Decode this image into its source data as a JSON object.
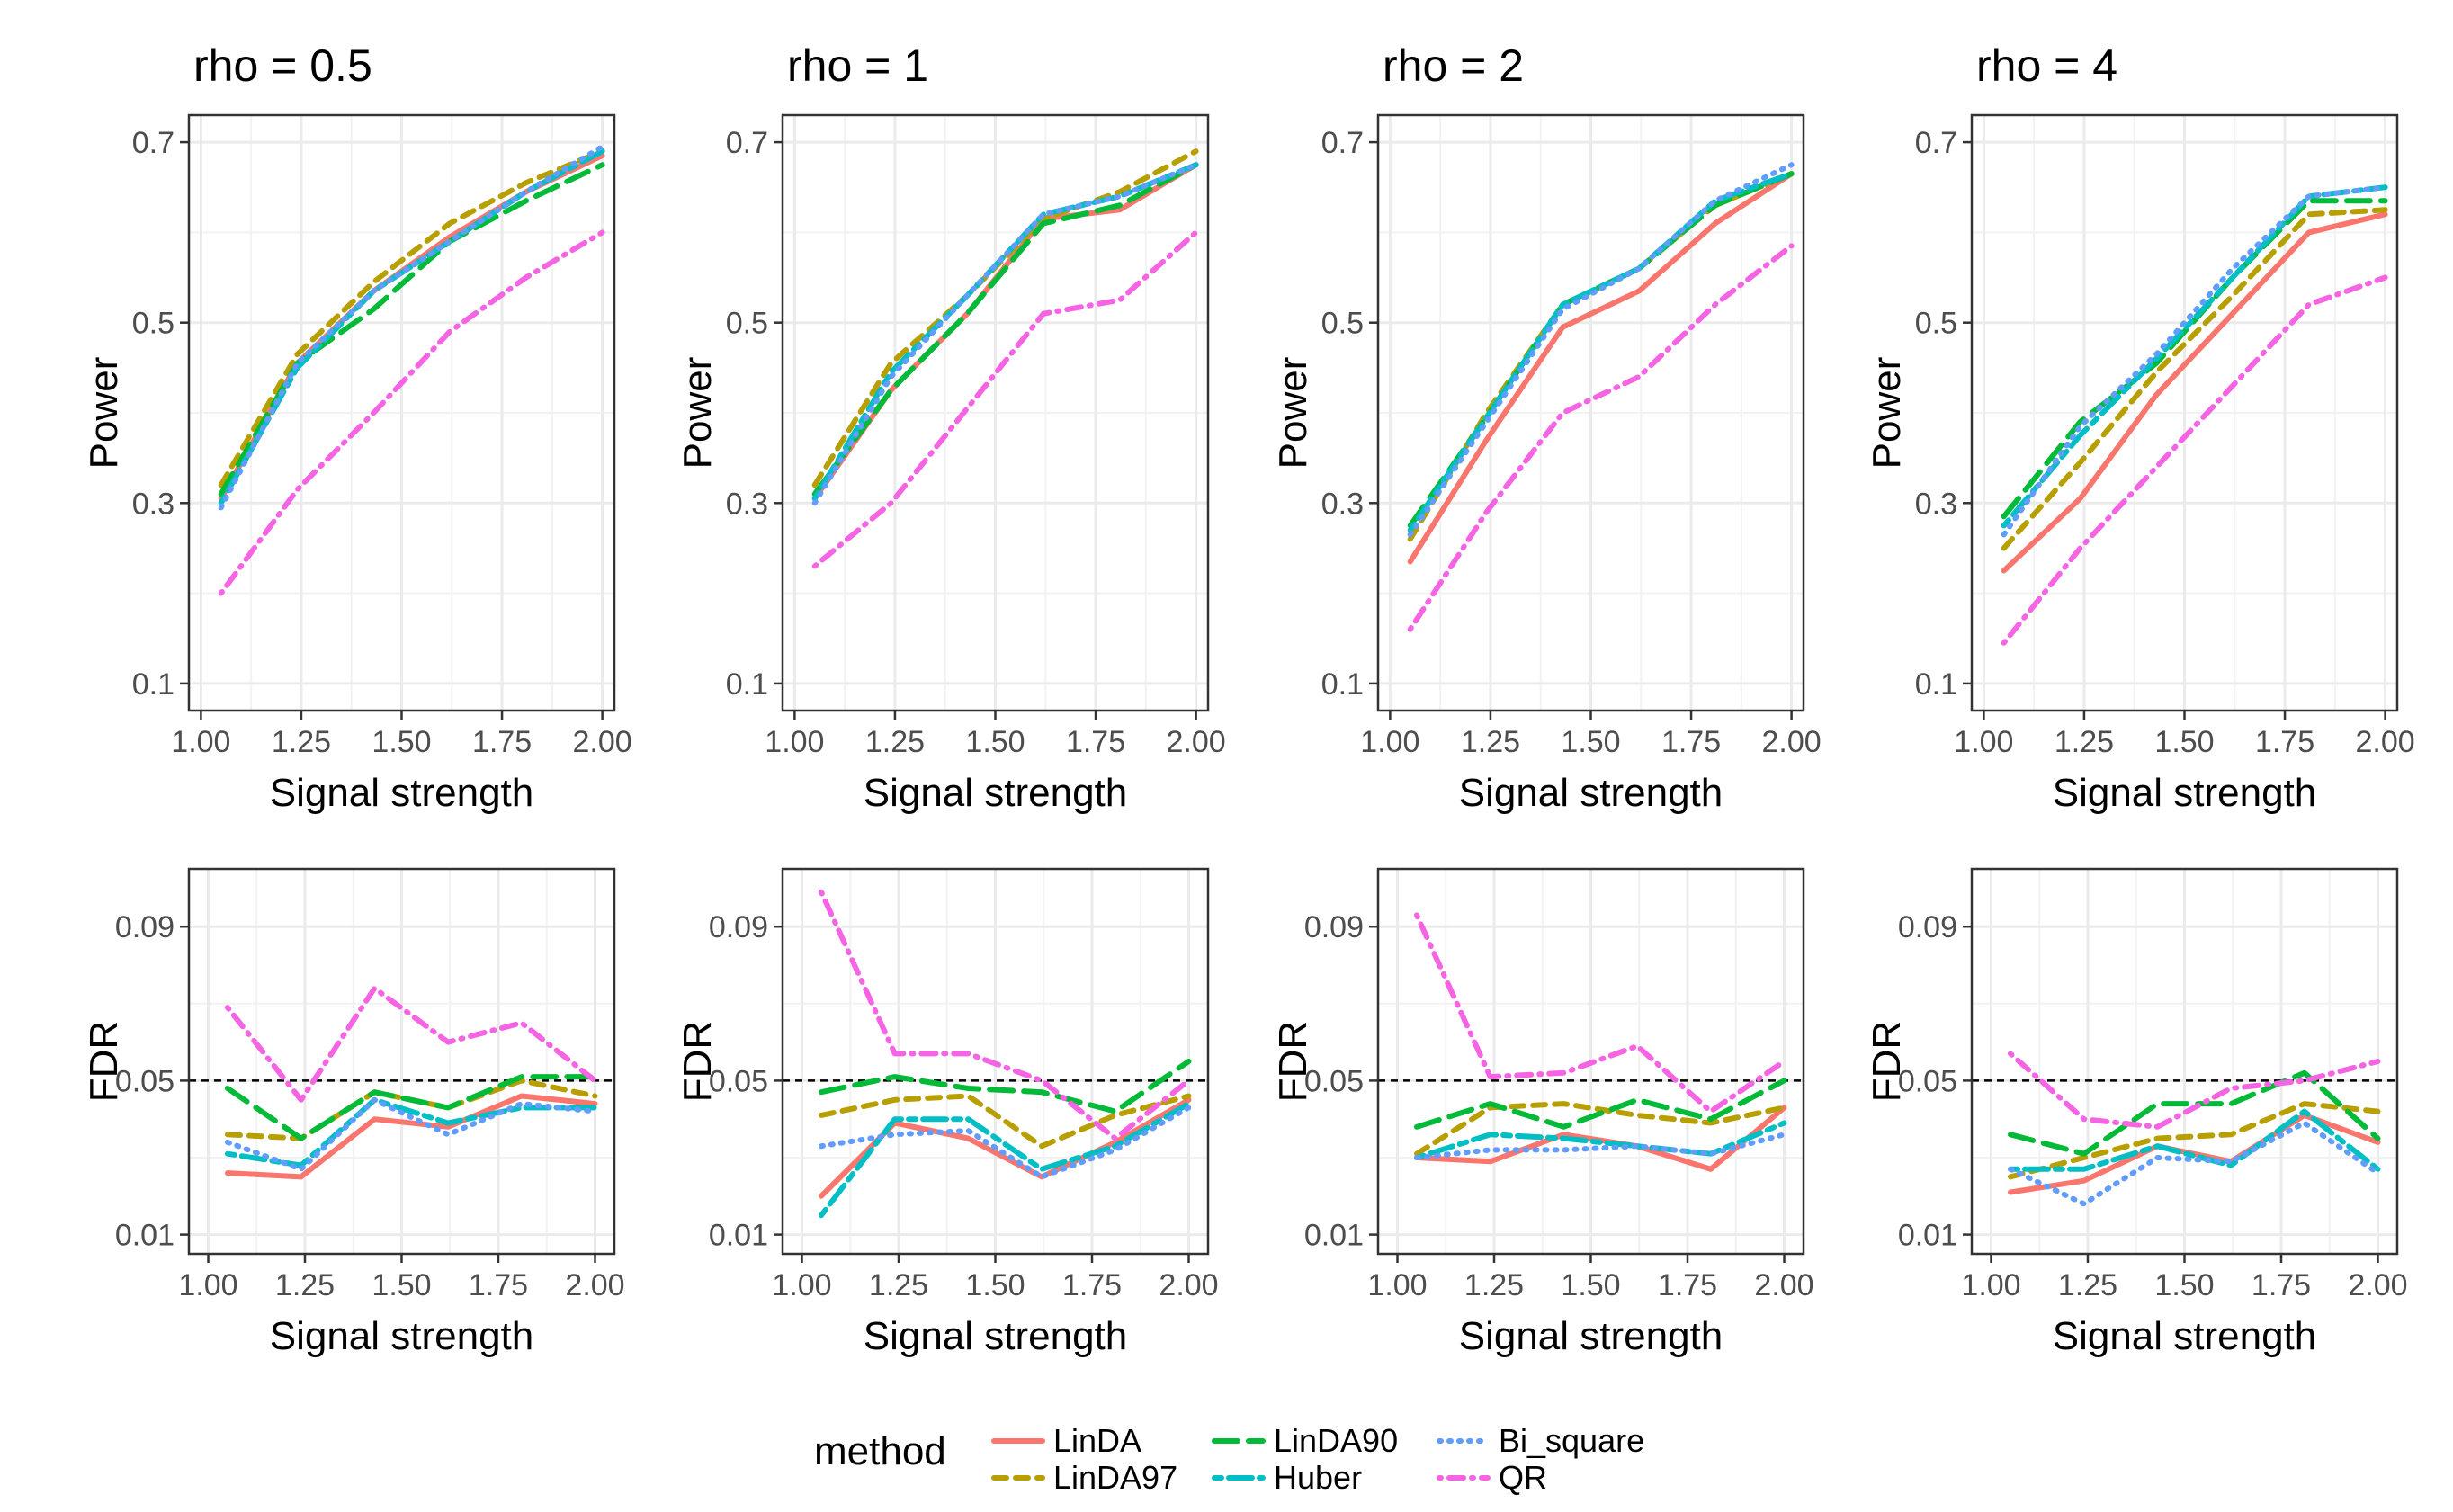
{
  "chart_data": [
    {
      "type": "line",
      "title": "rho = 0.5",
      "xlabel": "Signal strength",
      "ylabel": "Power",
      "xlim": [
        0.97,
        2.03
      ],
      "ylim": [
        0.07,
        0.73
      ],
      "xticks": [
        1.0,
        1.25,
        1.5,
        1.75,
        2.0
      ],
      "xtick_labels": [
        "1.00",
        "1.25",
        "1.50",
        "1.75",
        "2.00"
      ],
      "yticks": [
        0.1,
        0.3,
        0.5,
        0.7
      ],
      "ytick_labels": [
        "0.1",
        "0.3",
        "0.5",
        "0.7"
      ],
      "x": [
        1.05,
        1.24,
        1.43,
        1.62,
        1.81,
        2.0
      ],
      "series": [
        {
          "name": "LinDA",
          "values": [
            0.305,
            0.455,
            0.535,
            0.595,
            0.645,
            0.685
          ]
        },
        {
          "name": "LinDA97",
          "values": [
            0.32,
            0.465,
            0.545,
            0.61,
            0.655,
            0.69
          ]
        },
        {
          "name": "LinDA90",
          "values": [
            0.31,
            0.455,
            0.515,
            0.59,
            0.635,
            0.675
          ]
        },
        {
          "name": "Huber",
          "values": [
            0.3,
            0.45,
            0.535,
            0.59,
            0.645,
            0.69
          ]
        },
        {
          "name": "Bi_square",
          "values": [
            0.295,
            0.455,
            0.535,
            0.59,
            0.645,
            0.695
          ]
        },
        {
          "name": "QR",
          "values": [
            0.2,
            0.315,
            0.4,
            0.49,
            0.55,
            0.6
          ]
        }
      ]
    },
    {
      "type": "line",
      "title": "rho = 1",
      "xlabel": "Signal strength",
      "ylabel": "Power",
      "xlim": [
        0.97,
        2.03
      ],
      "ylim": [
        0.07,
        0.73
      ],
      "xticks": [
        1.0,
        1.25,
        1.5,
        1.75,
        2.0
      ],
      "xtick_labels": [
        "1.00",
        "1.25",
        "1.50",
        "1.75",
        "2.00"
      ],
      "yticks": [
        0.1,
        0.3,
        0.5,
        0.7
      ],
      "ytick_labels": [
        "0.1",
        "0.3",
        "0.5",
        "0.7"
      ],
      "x": [
        1.05,
        1.24,
        1.43,
        1.62,
        1.81,
        2.0
      ],
      "series": [
        {
          "name": "LinDA",
          "values": [
            0.305,
            0.425,
            0.51,
            0.615,
            0.625,
            0.675
          ]
        },
        {
          "name": "LinDA97",
          "values": [
            0.32,
            0.455,
            0.53,
            0.615,
            0.645,
            0.69
          ]
        },
        {
          "name": "LinDA90",
          "values": [
            0.31,
            0.425,
            0.51,
            0.61,
            0.63,
            0.675
          ]
        },
        {
          "name": "Huber",
          "values": [
            0.305,
            0.445,
            0.53,
            0.62,
            0.64,
            0.675
          ]
        },
        {
          "name": "Bi_square",
          "values": [
            0.3,
            0.44,
            0.53,
            0.62,
            0.64,
            0.675
          ]
        },
        {
          "name": "QR",
          "values": [
            0.23,
            0.3,
            0.405,
            0.51,
            0.525,
            0.6
          ]
        }
      ]
    },
    {
      "type": "line",
      "title": "rho = 2",
      "xlabel": "Signal strength",
      "ylabel": "Power",
      "xlim": [
        0.97,
        2.03
      ],
      "ylim": [
        0.07,
        0.73
      ],
      "xticks": [
        1.0,
        1.25,
        1.5,
        1.75,
        2.0
      ],
      "xtick_labels": [
        "1.00",
        "1.25",
        "1.50",
        "1.75",
        "2.00"
      ],
      "yticks": [
        0.1,
        0.3,
        0.5,
        0.7
      ],
      "ytick_labels": [
        "0.1",
        "0.3",
        "0.5",
        "0.7"
      ],
      "x": [
        1.05,
        1.24,
        1.43,
        1.62,
        1.81,
        2.0
      ],
      "series": [
        {
          "name": "LinDA",
          "values": [
            0.235,
            0.37,
            0.495,
            0.535,
            0.61,
            0.665
          ]
        },
        {
          "name": "LinDA97",
          "values": [
            0.26,
            0.4,
            0.52,
            0.56,
            0.63,
            0.665
          ]
        },
        {
          "name": "LinDA90",
          "values": [
            0.275,
            0.395,
            0.52,
            0.56,
            0.63,
            0.665
          ]
        },
        {
          "name": "Huber",
          "values": [
            0.27,
            0.395,
            0.52,
            0.56,
            0.635,
            0.665
          ]
        },
        {
          "name": "Bi_square",
          "values": [
            0.265,
            0.39,
            0.515,
            0.56,
            0.635,
            0.675
          ]
        },
        {
          "name": "QR",
          "values": [
            0.16,
            0.29,
            0.4,
            0.44,
            0.52,
            0.585
          ]
        }
      ]
    },
    {
      "type": "line",
      "title": "rho = 4",
      "xlabel": "Signal strength",
      "ylabel": "Power",
      "xlim": [
        0.97,
        2.03
      ],
      "ylim": [
        0.07,
        0.73
      ],
      "xticks": [
        1.0,
        1.25,
        1.5,
        1.75,
        2.0
      ],
      "xtick_labels": [
        "1.00",
        "1.25",
        "1.50",
        "1.75",
        "2.00"
      ],
      "yticks": [
        0.1,
        0.3,
        0.5,
        0.7
      ],
      "ytick_labels": [
        "0.1",
        "0.3",
        "0.5",
        "0.7"
      ],
      "x": [
        1.05,
        1.24,
        1.43,
        1.62,
        1.81,
        2.0
      ],
      "series": [
        {
          "name": "LinDA",
          "values": [
            0.225,
            0.305,
            0.42,
            0.51,
            0.6,
            0.62
          ]
        },
        {
          "name": "LinDA97",
          "values": [
            0.25,
            0.345,
            0.445,
            0.53,
            0.62,
            0.625
          ]
        },
        {
          "name": "LinDA90",
          "values": [
            0.285,
            0.39,
            0.455,
            0.55,
            0.635,
            0.635
          ]
        },
        {
          "name": "Huber",
          "values": [
            0.275,
            0.375,
            0.46,
            0.55,
            0.64,
            0.65
          ]
        },
        {
          "name": "Bi_square",
          "values": [
            0.265,
            0.385,
            0.465,
            0.56,
            0.64,
            0.65
          ]
        },
        {
          "name": "QR",
          "values": [
            0.145,
            0.25,
            0.34,
            0.43,
            0.52,
            0.55
          ]
        }
      ]
    },
    {
      "type": "line",
      "title": "",
      "xlabel": "Signal strength",
      "ylabel": "FDR",
      "xlim": [
        0.95,
        2.05
      ],
      "ylim": [
        0.005,
        0.105
      ],
      "xticks": [
        1.0,
        1.25,
        1.5,
        1.75,
        2.0
      ],
      "xtick_labels": [
        "1.00",
        "1.25",
        "1.50",
        "1.75",
        "2.00"
      ],
      "yticks": [
        0.01,
        0.05,
        0.09
      ],
      "ytick_labels": [
        "0.01",
        "0.05",
        "0.09"
      ],
      "reference_line": 0.05,
      "x": [
        1.05,
        1.24,
        1.43,
        1.62,
        1.81,
        2.0
      ],
      "series": [
        {
          "name": "LinDA",
          "values": [
            0.026,
            0.025,
            0.04,
            0.038,
            0.046,
            0.044
          ]
        },
        {
          "name": "LinDA97",
          "values": [
            0.036,
            0.035,
            0.047,
            0.043,
            0.05,
            0.046
          ]
        },
        {
          "name": "LinDA90",
          "values": [
            0.048,
            0.035,
            0.047,
            0.043,
            0.051,
            0.051
          ]
        },
        {
          "name": "Huber",
          "values": [
            0.031,
            0.028,
            0.045,
            0.039,
            0.043,
            0.043
          ]
        },
        {
          "name": "Bi_square",
          "values": [
            0.034,
            0.027,
            0.045,
            0.036,
            0.044,
            0.042
          ]
        },
        {
          "name": "QR",
          "values": [
            0.069,
            0.045,
            0.074,
            0.06,
            0.065,
            0.05
          ]
        }
      ]
    },
    {
      "type": "line",
      "title": "",
      "xlabel": "Signal strength",
      "ylabel": "FDR",
      "xlim": [
        0.95,
        2.05
      ],
      "ylim": [
        0.005,
        0.105
      ],
      "xticks": [
        1.0,
        1.25,
        1.5,
        1.75,
        2.0
      ],
      "xtick_labels": [
        "1.00",
        "1.25",
        "1.50",
        "1.75",
        "2.00"
      ],
      "yticks": [
        0.01,
        0.05,
        0.09
      ],
      "ytick_labels": [
        "0.01",
        "0.05",
        "0.09"
      ],
      "reference_line": 0.05,
      "x": [
        1.05,
        1.24,
        1.43,
        1.62,
        1.81,
        2.0
      ],
      "series": [
        {
          "name": "LinDA",
          "values": [
            0.02,
            0.039,
            0.035,
            0.025,
            0.034,
            0.045
          ]
        },
        {
          "name": "LinDA97",
          "values": [
            0.041,
            0.045,
            0.046,
            0.033,
            0.041,
            0.046
          ]
        },
        {
          "name": "LinDA90",
          "values": [
            0.047,
            0.051,
            0.048,
            0.047,
            0.042,
            0.055
          ]
        },
        {
          "name": "Huber",
          "values": [
            0.015,
            0.04,
            0.04,
            0.027,
            0.033,
            0.044
          ]
        },
        {
          "name": "Bi_square",
          "values": [
            0.033,
            0.036,
            0.037,
            0.025,
            0.032,
            0.043
          ]
        },
        {
          "name": "QR",
          "values": [
            0.099,
            0.057,
            0.057,
            0.05,
            0.035,
            0.05
          ]
        }
      ]
    },
    {
      "type": "line",
      "title": "",
      "xlabel": "Signal strength",
      "ylabel": "FDR",
      "xlim": [
        0.95,
        2.05
      ],
      "ylim": [
        0.005,
        0.105
      ],
      "xticks": [
        1.0,
        1.25,
        1.5,
        1.75,
        2.0
      ],
      "xtick_labels": [
        "1.00",
        "1.25",
        "1.50",
        "1.75",
        "2.00"
      ],
      "yticks": [
        0.01,
        0.05,
        0.09
      ],
      "ytick_labels": [
        "0.01",
        "0.05",
        "0.09"
      ],
      "reference_line": 0.05,
      "x": [
        1.05,
        1.24,
        1.43,
        1.62,
        1.81,
        2.0
      ],
      "series": [
        {
          "name": "LinDA",
          "values": [
            0.03,
            0.029,
            0.036,
            0.033,
            0.027,
            0.043
          ]
        },
        {
          "name": "LinDA97",
          "values": [
            0.031,
            0.043,
            0.044,
            0.041,
            0.039,
            0.043
          ]
        },
        {
          "name": "LinDA90",
          "values": [
            0.038,
            0.044,
            0.038,
            0.045,
            0.04,
            0.05
          ]
        },
        {
          "name": "Huber",
          "values": [
            0.03,
            0.036,
            0.035,
            0.033,
            0.031,
            0.039
          ]
        },
        {
          "name": "Bi_square",
          "values": [
            0.03,
            0.032,
            0.032,
            0.033,
            0.031,
            0.036
          ]
        },
        {
          "name": "QR",
          "values": [
            0.093,
            0.051,
            0.052,
            0.059,
            0.042,
            0.055
          ]
        }
      ]
    },
    {
      "type": "line",
      "title": "",
      "xlabel": "Signal strength",
      "ylabel": "FDR",
      "xlim": [
        0.95,
        2.05
      ],
      "ylim": [
        0.005,
        0.105
      ],
      "xticks": [
        1.0,
        1.25,
        1.5,
        1.75,
        2.0
      ],
      "xtick_labels": [
        "1.00",
        "1.25",
        "1.50",
        "1.75",
        "2.00"
      ],
      "yticks": [
        0.01,
        0.05,
        0.09
      ],
      "ytick_labels": [
        "0.01",
        "0.05",
        "0.09"
      ],
      "reference_line": 0.05,
      "x": [
        1.05,
        1.24,
        1.43,
        1.62,
        1.81,
        2.0
      ],
      "series": [
        {
          "name": "LinDA",
          "values": [
            0.021,
            0.024,
            0.033,
            0.029,
            0.041,
            0.034
          ]
        },
        {
          "name": "LinDA97",
          "values": [
            0.025,
            0.03,
            0.035,
            0.036,
            0.044,
            0.042
          ]
        },
        {
          "name": "LinDA90",
          "values": [
            0.036,
            0.031,
            0.044,
            0.044,
            0.052,
            0.035
          ]
        },
        {
          "name": "Huber",
          "values": [
            0.027,
            0.027,
            0.033,
            0.028,
            0.042,
            0.027
          ]
        },
        {
          "name": "Bi_square",
          "values": [
            0.027,
            0.018,
            0.03,
            0.029,
            0.039,
            0.026
          ]
        },
        {
          "name": "QR",
          "values": [
            0.057,
            0.04,
            0.038,
            0.048,
            0.05,
            0.055
          ]
        }
      ]
    }
  ],
  "legend": {
    "title": "method",
    "entries": [
      "LinDA",
      "LinDA97",
      "LinDA90",
      "Huber",
      "Bi_square",
      "QR"
    ]
  },
  "styles": {
    "LinDA": {
      "color": "#F8766D",
      "dash": "solid"
    },
    "LinDA97": {
      "color": "#B79F00",
      "dash": "dashed"
    },
    "LinDA90": {
      "color": "#00BA38",
      "dash": "longdash"
    },
    "Huber": {
      "color": "#00BFC4",
      "dash": "twodash"
    },
    "Bi_square": {
      "color": "#619CFF",
      "dash": "dotted"
    },
    "QR": {
      "color": "#F564E3",
      "dash": "dotdash"
    }
  }
}
